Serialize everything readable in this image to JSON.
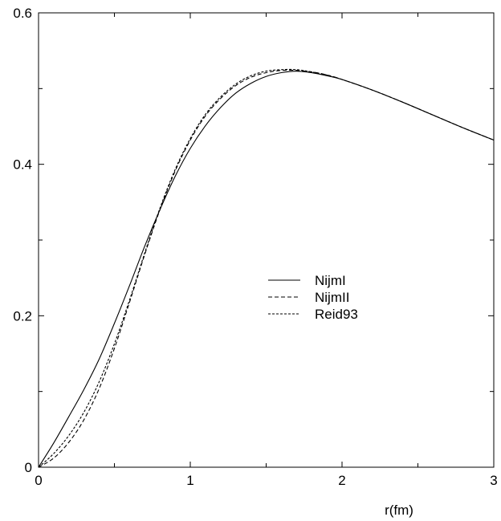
{
  "chart_data": {
    "type": "line",
    "title": "",
    "xlabel": "r(fm)",
    "ylabel": "",
    "xlim": [
      0,
      3
    ],
    "ylim": [
      0,
      0.6
    ],
    "x_ticks": [
      {
        "value": 0,
        "label": "0"
      },
      {
        "value": 1,
        "label": "1"
      },
      {
        "value": 2,
        "label": "2"
      },
      {
        "value": 3,
        "label": "3"
      }
    ],
    "y_ticks": [
      {
        "value": 0,
        "label": "0"
      },
      {
        "value": 0.2,
        "label": "0.2"
      },
      {
        "value": 0.4,
        "label": "0.4"
      },
      {
        "value": 0.6,
        "label": "0.6"
      }
    ],
    "grid": false,
    "legend_position": "center-right",
    "series": [
      {
        "name": "NijmI",
        "line_style": "solid",
        "color": "#000000",
        "x": [
          0,
          0.1,
          0.2,
          0.3,
          0.4,
          0.5,
          0.6,
          0.7,
          0.8,
          0.9,
          1.0,
          1.1,
          1.2,
          1.3,
          1.4,
          1.5,
          1.6,
          1.7,
          1.8,
          1.9,
          2.0,
          2.2,
          2.4,
          2.6,
          2.8,
          3.0
        ],
        "y": [
          0,
          0.032,
          0.067,
          0.103,
          0.143,
          0.19,
          0.24,
          0.292,
          0.34,
          0.384,
          0.421,
          0.451,
          0.475,
          0.494,
          0.507,
          0.516,
          0.521,
          0.523,
          0.521,
          0.517,
          0.512,
          0.498,
          0.482,
          0.465,
          0.448,
          0.432
        ]
      },
      {
        "name": "NijmII",
        "line_style": "dashed",
        "color": "#000000",
        "x": [
          0,
          0.1,
          0.2,
          0.3,
          0.4,
          0.5,
          0.6,
          0.7,
          0.8,
          0.9,
          1.0,
          1.1,
          1.2,
          1.3,
          1.4,
          1.5,
          1.6,
          1.7,
          1.8,
          1.9,
          2.0,
          2.2,
          2.4,
          2.6,
          2.8,
          3.0
        ],
        "y": [
          0,
          0.012,
          0.033,
          0.063,
          0.104,
          0.157,
          0.218,
          0.281,
          0.34,
          0.391,
          0.432,
          0.464,
          0.487,
          0.504,
          0.515,
          0.521,
          0.524,
          0.524,
          0.522,
          0.518,
          0.512,
          0.498,
          0.482,
          0.465,
          0.448,
          0.432
        ]
      },
      {
        "name": "Reid93",
        "line_style": "short-dashed",
        "color": "#000000",
        "x": [
          0,
          0.1,
          0.2,
          0.3,
          0.4,
          0.5,
          0.6,
          0.7,
          0.8,
          0.9,
          1.0,
          1.1,
          1.2,
          1.3,
          1.4,
          1.5,
          1.6,
          1.7,
          1.8,
          1.9,
          2.0,
          2.2,
          2.4,
          2.6,
          2.8,
          3.0
        ],
        "y": [
          0,
          0.018,
          0.042,
          0.073,
          0.113,
          0.163,
          0.221,
          0.283,
          0.342,
          0.393,
          0.434,
          0.466,
          0.489,
          0.506,
          0.517,
          0.523,
          0.525,
          0.525,
          0.522,
          0.518,
          0.512,
          0.498,
          0.482,
          0.465,
          0.448,
          0.432
        ]
      }
    ]
  }
}
